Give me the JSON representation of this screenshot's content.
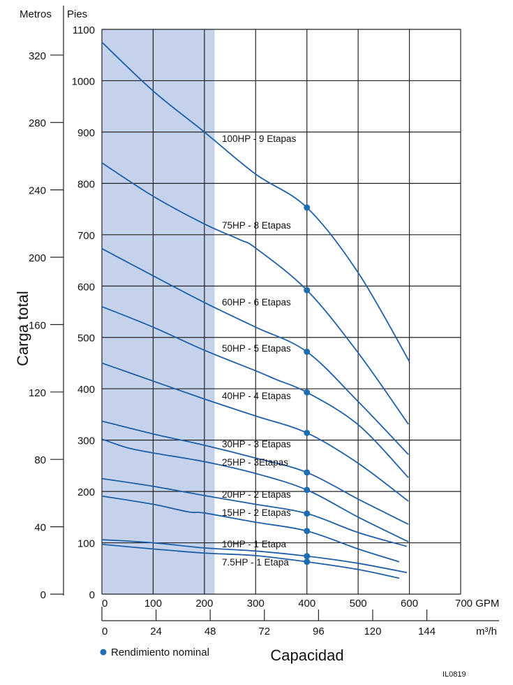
{
  "chart_data": {
    "type": "line",
    "title": "",
    "ylabel": "Carga total",
    "xlabel": "Capacidad",
    "y_units_left": "Metros",
    "y_units_right": "Pies",
    "x_units_primary": "GPM",
    "x_units_secondary": "m³/h",
    "xlim": [
      0,
      700
    ],
    "ylim": [
      0,
      1100
    ],
    "grid": true,
    "shaded_region_gpm": [
      0,
      220
    ],
    "y_ticks_ft": [
      "0",
      "100",
      "200",
      "300",
      "400",
      "500",
      "600",
      "700",
      "800",
      "900",
      "1000",
      "1100"
    ],
    "y_ticks_m": [
      "0",
      "40",
      "80",
      "120",
      "160",
      "200",
      "240",
      "280",
      "320"
    ],
    "x_ticks_gpm": [
      "0",
      "100",
      "200",
      "300",
      "400",
      "500",
      "600",
      "700 GPM"
    ],
    "x_ticks_m3h": [
      "0",
      "24",
      "48",
      "72",
      "96",
      "120",
      "144"
    ],
    "m3h_unit_label": "m³/h",
    "legend": {
      "marker_label": "Rendimiento nominal",
      "placement": "bottom-left"
    },
    "series": [
      {
        "name": "100HP - 9 Etapas",
        "x": [
          0,
          100,
          200,
          300,
          400,
          500,
          600
        ],
        "y": [
          1075,
          980,
          900,
          818,
          753,
          626,
          453
        ],
        "rated": [
          400,
          753
        ]
      },
      {
        "name": "75HP - 8 Etapas",
        "x": [
          0,
          100,
          200,
          270,
          300,
          400,
          500,
          598
        ],
        "y": [
          840,
          775,
          721,
          690,
          674,
          592,
          470,
          331
        ],
        "rated": [
          400,
          592
        ]
      },
      {
        "name": "60HP - 6 Etapas",
        "x": [
          0,
          100,
          200,
          300,
          400,
          500,
          598
        ],
        "y": [
          673,
          620,
          568,
          520,
          472,
          375,
          272
        ],
        "rated": [
          400,
          472
        ]
      },
      {
        "name": "50HP - 5 Etapas",
        "x": [
          0,
          100,
          200,
          300,
          340,
          400,
          500,
          598
        ],
        "y": [
          560,
          520,
          475,
          435,
          418,
          393,
          330,
          227
        ],
        "rated": [
          400,
          393
        ]
      },
      {
        "name": "40HP - 4 Etapas",
        "x": [
          0,
          100,
          200,
          300,
          400,
          500,
          598
        ],
        "y": [
          450,
          415,
          380,
          347,
          314,
          255,
          181
        ],
        "rated": [
          400,
          314
        ]
      },
      {
        "name": "30HP - 3 Etapas",
        "x": [
          0,
          100,
          200,
          300,
          400,
          500,
          550,
          598
        ],
        "y": [
          337,
          312,
          290,
          265,
          237,
          185,
          160,
          136
        ],
        "rated": [
          400,
          237
        ]
      },
      {
        "name": "25HP - 3Etapas",
        "x": [
          0,
          50,
          100,
          200,
          300,
          400,
          500,
          598
        ],
        "y": [
          302,
          285,
          275,
          258,
          235,
          203,
          150,
          102
        ],
        "rated": [
          400,
          203
        ]
      },
      {
        "name": "20HP - 2 Etapas",
        "x": [
          0,
          100,
          200,
          300,
          400,
          500,
          595
        ],
        "y": [
          225,
          210,
          192,
          175,
          157,
          120,
          93
        ],
        "rated": [
          400,
          157
        ]
      },
      {
        "name": "15HP - 2 Etapas",
        "x": [
          0,
          100,
          170,
          200,
          300,
          400,
          500,
          580
        ],
        "y": [
          191,
          175,
          160,
          158,
          140,
          123,
          88,
          63
        ],
        "rated": [
          400,
          123
        ]
      },
      {
        "name": "10HP - 1 Etapa",
        "x": [
          0,
          100,
          200,
          300,
          400,
          500,
          595
        ],
        "y": [
          106,
          100,
          90,
          84,
          74,
          60,
          42
        ],
        "rated": [
          400,
          74
        ]
      },
      {
        "name": "7.5HP - 1 Etapa",
        "x": [
          0,
          100,
          200,
          300,
          400,
          500,
          580
        ],
        "y": [
          97,
          88,
          80,
          75,
          63,
          48,
          31
        ],
        "rated": [
          400,
          63
        ]
      }
    ],
    "colors": {
      "curve": "#1f5fa6",
      "marker": "#1f6db0",
      "shade": "#c5d2ec",
      "grid": "#222222"
    }
  },
  "figure_id": "IL0819"
}
